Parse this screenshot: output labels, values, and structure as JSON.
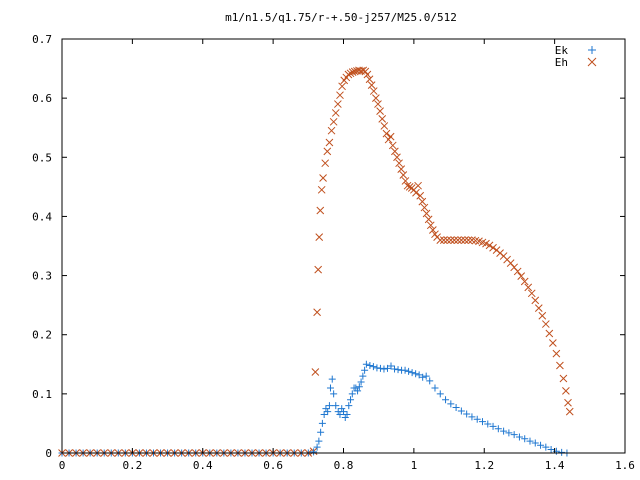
{
  "chart_data": {
    "type": "scatter",
    "title": "m1/n1.5/q1.75/r-+.50-j257/M25.0/512",
    "xlabel": "",
    "ylabel": "",
    "xlim": [
      0,
      1.6
    ],
    "ylim": [
      0,
      0.7
    ],
    "x_ticks": [
      0,
      0.2,
      0.4,
      0.6,
      0.8,
      1,
      1.2,
      1.4,
      1.6
    ],
    "x_tick_labels": [
      "0",
      "0.2",
      "0.4",
      "0.6",
      "0.8",
      "1",
      "1.2",
      "1.4",
      "1.6"
    ],
    "y_ticks": [
      0,
      0.1,
      0.2,
      0.3,
      0.4,
      0.5,
      0.6,
      0.7
    ],
    "y_tick_labels": [
      "0",
      "0.1",
      "0.2",
      "0.3",
      "0.4",
      "0.5",
      "0.6",
      "0.7"
    ],
    "grid": false,
    "legend_position": "top-right",
    "series": [
      {
        "name": "Ek",
        "marker": "plus",
        "color": "#1f77d0",
        "points": [
          [
            0.0,
            0
          ],
          [
            0.02,
            0
          ],
          [
            0.04,
            0
          ],
          [
            0.06,
            0
          ],
          [
            0.08,
            0
          ],
          [
            0.1,
            0
          ],
          [
            0.12,
            0
          ],
          [
            0.14,
            0
          ],
          [
            0.16,
            0
          ],
          [
            0.18,
            0
          ],
          [
            0.2,
            0
          ],
          [
            0.22,
            0
          ],
          [
            0.24,
            0
          ],
          [
            0.26,
            0
          ],
          [
            0.28,
            0
          ],
          [
            0.3,
            0
          ],
          [
            0.32,
            0
          ],
          [
            0.34,
            0
          ],
          [
            0.36,
            0
          ],
          [
            0.38,
            0
          ],
          [
            0.4,
            0
          ],
          [
            0.42,
            0
          ],
          [
            0.44,
            0
          ],
          [
            0.46,
            0
          ],
          [
            0.48,
            0
          ],
          [
            0.5,
            0
          ],
          [
            0.52,
            0
          ],
          [
            0.54,
            0
          ],
          [
            0.56,
            0
          ],
          [
            0.58,
            0
          ],
          [
            0.6,
            0
          ],
          [
            0.62,
            0
          ],
          [
            0.64,
            0
          ],
          [
            0.66,
            0
          ],
          [
            0.68,
            0
          ],
          [
            0.7,
            0
          ],
          [
            0.715,
            0.002
          ],
          [
            0.725,
            0.01
          ],
          [
            0.73,
            0.02
          ],
          [
            0.735,
            0.035
          ],
          [
            0.74,
            0.05
          ],
          [
            0.745,
            0.065
          ],
          [
            0.75,
            0.075
          ],
          [
            0.755,
            0.07
          ],
          [
            0.76,
            0.08
          ],
          [
            0.763,
            0.11
          ],
          [
            0.768,
            0.125
          ],
          [
            0.772,
            0.1
          ],
          [
            0.778,
            0.08
          ],
          [
            0.785,
            0.07
          ],
          [
            0.79,
            0.065
          ],
          [
            0.795,
            0.075
          ],
          [
            0.8,
            0.07
          ],
          [
            0.805,
            0.06
          ],
          [
            0.81,
            0.065
          ],
          [
            0.815,
            0.08
          ],
          [
            0.82,
            0.09
          ],
          [
            0.825,
            0.1
          ],
          [
            0.83,
            0.11
          ],
          [
            0.835,
            0.11
          ],
          [
            0.84,
            0.105
          ],
          [
            0.845,
            0.112
          ],
          [
            0.85,
            0.12
          ],
          [
            0.855,
            0.13
          ],
          [
            0.86,
            0.14
          ],
          [
            0.865,
            0.15
          ],
          [
            0.875,
            0.148
          ],
          [
            0.885,
            0.146
          ],
          [
            0.895,
            0.144
          ],
          [
            0.905,
            0.143
          ],
          [
            0.915,
            0.142
          ],
          [
            0.925,
            0.143
          ],
          [
            0.935,
            0.147
          ],
          [
            0.945,
            0.142
          ],
          [
            0.955,
            0.141
          ],
          [
            0.965,
            0.14
          ],
          [
            0.975,
            0.14
          ],
          [
            0.985,
            0.138
          ],
          [
            0.995,
            0.136
          ],
          [
            1.005,
            0.134
          ],
          [
            1.015,
            0.132
          ],
          [
            1.025,
            0.128
          ],
          [
            1.035,
            0.13
          ],
          [
            1.045,
            0.122
          ],
          [
            1.06,
            0.11
          ],
          [
            1.075,
            0.1
          ],
          [
            1.09,
            0.09
          ],
          [
            1.105,
            0.083
          ],
          [
            1.12,
            0.077
          ],
          [
            1.135,
            0.071
          ],
          [
            1.15,
            0.066
          ],
          [
            1.165,
            0.061
          ],
          [
            1.18,
            0.057
          ],
          [
            1.195,
            0.053
          ],
          [
            1.21,
            0.049
          ],
          [
            1.225,
            0.045
          ],
          [
            1.24,
            0.041
          ],
          [
            1.255,
            0.037
          ],
          [
            1.27,
            0.034
          ],
          [
            1.285,
            0.031
          ],
          [
            1.3,
            0.027
          ],
          [
            1.315,
            0.024
          ],
          [
            1.33,
            0.02
          ],
          [
            1.345,
            0.017
          ],
          [
            1.36,
            0.013
          ],
          [
            1.375,
            0.01
          ],
          [
            1.39,
            0.006
          ],
          [
            1.405,
            0.003
          ],
          [
            1.42,
            0.001
          ],
          [
            1.435,
            0
          ]
        ]
      },
      {
        "name": "Eh",
        "marker": "cross",
        "color": "#c0501e",
        "points": [
          [
            0.0,
            0
          ],
          [
            0.02,
            0
          ],
          [
            0.04,
            0
          ],
          [
            0.06,
            0
          ],
          [
            0.08,
            0
          ],
          [
            0.1,
            0
          ],
          [
            0.12,
            0
          ],
          [
            0.14,
            0
          ],
          [
            0.16,
            0
          ],
          [
            0.18,
            0
          ],
          [
            0.2,
            0
          ],
          [
            0.22,
            0
          ],
          [
            0.24,
            0
          ],
          [
            0.26,
            0
          ],
          [
            0.28,
            0
          ],
          [
            0.3,
            0
          ],
          [
            0.32,
            0
          ],
          [
            0.34,
            0
          ],
          [
            0.36,
            0
          ],
          [
            0.38,
            0
          ],
          [
            0.4,
            0
          ],
          [
            0.42,
            0
          ],
          [
            0.44,
            0
          ],
          [
            0.46,
            0
          ],
          [
            0.48,
            0
          ],
          [
            0.5,
            0
          ],
          [
            0.52,
            0
          ],
          [
            0.54,
            0
          ],
          [
            0.56,
            0
          ],
          [
            0.58,
            0
          ],
          [
            0.6,
            0
          ],
          [
            0.62,
            0
          ],
          [
            0.64,
            0
          ],
          [
            0.66,
            0
          ],
          [
            0.68,
            0
          ],
          [
            0.7,
            0
          ],
          [
            0.715,
            0.003
          ],
          [
            0.72,
            0.137
          ],
          [
            0.725,
            0.238
          ],
          [
            0.728,
            0.31
          ],
          [
            0.731,
            0.365
          ],
          [
            0.734,
            0.41
          ],
          [
            0.738,
            0.445
          ],
          [
            0.742,
            0.465
          ],
          [
            0.748,
            0.49
          ],
          [
            0.754,
            0.51
          ],
          [
            0.76,
            0.525
          ],
          [
            0.766,
            0.545
          ],
          [
            0.772,
            0.56
          ],
          [
            0.778,
            0.575
          ],
          [
            0.784,
            0.59
          ],
          [
            0.79,
            0.605
          ],
          [
            0.796,
            0.62
          ],
          [
            0.802,
            0.63
          ],
          [
            0.808,
            0.635
          ],
          [
            0.814,
            0.64
          ],
          [
            0.82,
            0.642
          ],
          [
            0.826,
            0.644
          ],
          [
            0.832,
            0.645
          ],
          [
            0.838,
            0.646
          ],
          [
            0.844,
            0.647
          ],
          [
            0.85,
            0.646
          ],
          [
            0.856,
            0.647
          ],
          [
            0.862,
            0.645
          ],
          [
            0.868,
            0.64
          ],
          [
            0.874,
            0.632
          ],
          [
            0.88,
            0.622
          ],
          [
            0.886,
            0.612
          ],
          [
            0.892,
            0.6
          ],
          [
            0.898,
            0.59
          ],
          [
            0.904,
            0.578
          ],
          [
            0.91,
            0.565
          ],
          [
            0.916,
            0.553
          ],
          [
            0.922,
            0.54
          ],
          [
            0.928,
            0.53
          ],
          [
            0.934,
            0.535
          ],
          [
            0.94,
            0.52
          ],
          [
            0.946,
            0.51
          ],
          [
            0.952,
            0.5
          ],
          [
            0.958,
            0.49
          ],
          [
            0.964,
            0.48
          ],
          [
            0.97,
            0.47
          ],
          [
            0.976,
            0.46
          ],
          [
            0.982,
            0.452
          ],
          [
            0.988,
            0.45
          ],
          [
            0.994,
            0.448
          ],
          [
            1.0,
            0.445
          ],
          [
            1.006,
            0.44
          ],
          [
            1.012,
            0.452
          ],
          [
            1.018,
            0.435
          ],
          [
            1.024,
            0.425
          ],
          [
            1.03,
            0.415
          ],
          [
            1.036,
            0.405
          ],
          [
            1.042,
            0.395
          ],
          [
            1.048,
            0.385
          ],
          [
            1.054,
            0.377
          ],
          [
            1.06,
            0.37
          ],
          [
            1.066,
            0.365
          ],
          [
            1.075,
            0.36
          ],
          [
            1.085,
            0.36
          ],
          [
            1.095,
            0.36
          ],
          [
            1.105,
            0.36
          ],
          [
            1.115,
            0.36
          ],
          [
            1.125,
            0.36
          ],
          [
            1.135,
            0.36
          ],
          [
            1.145,
            0.36
          ],
          [
            1.155,
            0.36
          ],
          [
            1.165,
            0.36
          ],
          [
            1.175,
            0.359
          ],
          [
            1.185,
            0.358
          ],
          [
            1.195,
            0.356
          ],
          [
            1.205,
            0.354
          ],
          [
            1.215,
            0.351
          ],
          [
            1.225,
            0.347
          ],
          [
            1.235,
            0.343
          ],
          [
            1.245,
            0.338
          ],
          [
            1.255,
            0.333
          ],
          [
            1.265,
            0.327
          ],
          [
            1.275,
            0.321
          ],
          [
            1.285,
            0.314
          ],
          [
            1.295,
            0.307
          ],
          [
            1.305,
            0.299
          ],
          [
            1.315,
            0.29
          ],
          [
            1.325,
            0.28
          ],
          [
            1.335,
            0.27
          ],
          [
            1.345,
            0.258
          ],
          [
            1.355,
            0.245
          ],
          [
            1.365,
            0.232
          ],
          [
            1.375,
            0.218
          ],
          [
            1.385,
            0.202
          ],
          [
            1.395,
            0.186
          ],
          [
            1.405,
            0.168
          ],
          [
            1.415,
            0.148
          ],
          [
            1.425,
            0.126
          ],
          [
            1.432,
            0.105
          ],
          [
            1.438,
            0.085
          ],
          [
            1.443,
            0.07
          ]
        ]
      }
    ]
  }
}
